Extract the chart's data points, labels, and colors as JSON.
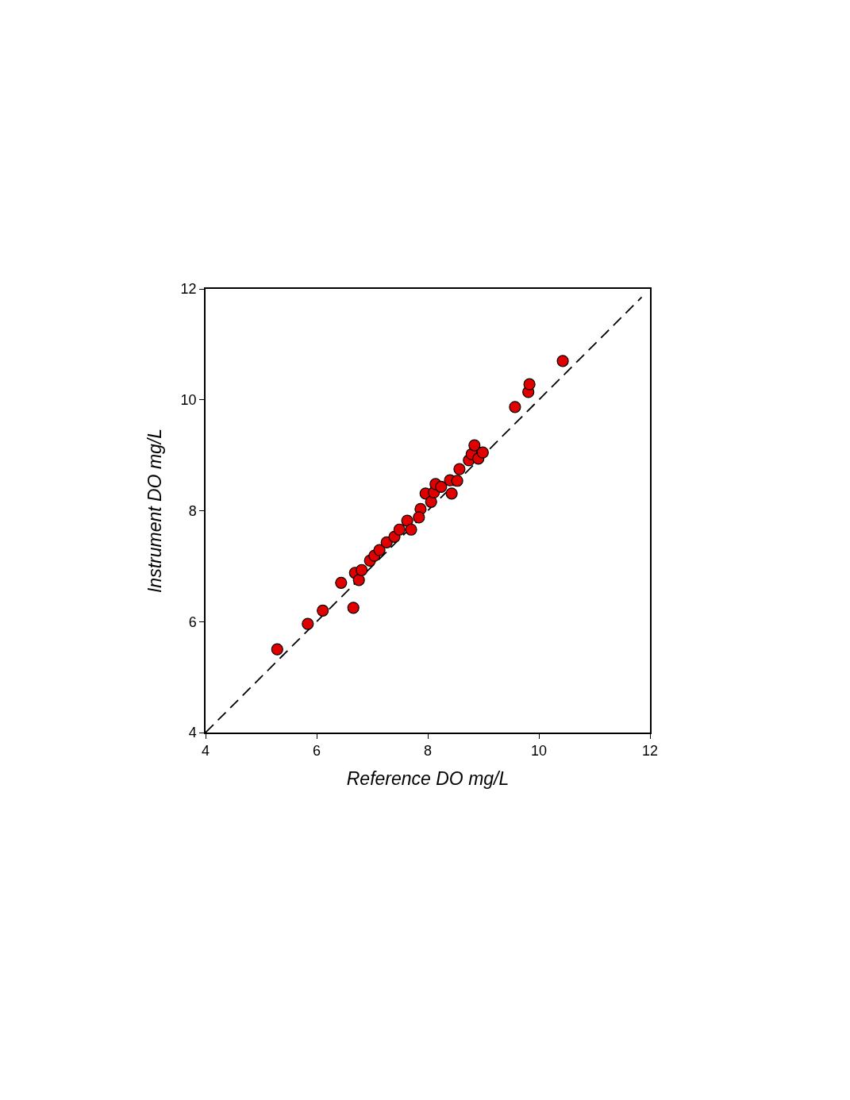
{
  "chart_data": {
    "type": "scatter",
    "xlabel": "Reference DO mg/L",
    "ylabel": "Instrument DO mg/L",
    "xlim": [
      4,
      12
    ],
    "ylim": [
      4,
      12
    ],
    "xticks": [
      4,
      6,
      8,
      10,
      12
    ],
    "yticks": [
      4,
      6,
      8,
      10,
      12
    ],
    "grid": false,
    "legend": false,
    "marker": "circle",
    "series": [
      {
        "type": "line",
        "color": "#000000",
        "line_style": "dashed",
        "marker": "none",
        "x": [
          4,
          11.85
        ],
        "values": [
          4,
          11.85
        ]
      },
      {
        "color": "#e00000",
        "x": [
          5.29,
          5.84,
          6.11,
          6.44,
          6.66,
          6.69,
          6.76,
          6.81,
          6.96,
          7.04,
          7.13,
          7.26,
          7.4,
          7.49,
          7.59,
          7.63,
          7.7,
          7.8,
          7.87,
          7.84,
          7.96,
          8.06,
          8.11,
          8.14,
          8.24,
          8.4,
          8.43,
          8.53,
          8.57,
          8.74,
          8.79,
          8.84,
          8.91,
          8.99,
          9.57,
          9.81,
          9.83,
          10.43
        ],
        "values": [
          5.5,
          5.96,
          6.2,
          6.7,
          6.25,
          6.88,
          6.75,
          6.93,
          7.1,
          7.19,
          7.29,
          7.43,
          7.53,
          7.66,
          null,
          7.82,
          7.66,
          null,
          8.03,
          7.88,
          8.31,
          8.16,
          8.33,
          8.48,
          8.43,
          8.55,
          8.31,
          8.54,
          8.75,
          8.91,
          9.02,
          9.18,
          8.94,
          9.05,
          9.87,
          10.14,
          10.28,
          10.7
        ]
      }
    ]
  }
}
